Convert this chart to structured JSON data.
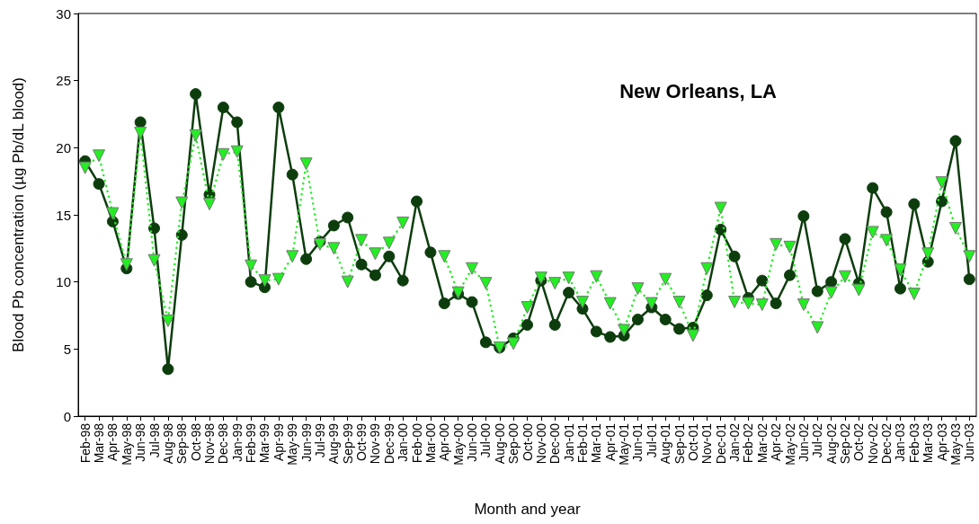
{
  "chart_data": {
    "type": "line",
    "title": "New Orleans, LA",
    "xlabel": "Month and year",
    "ylabel": "Blood Pb concentration (µg Pb/dL blood)",
    "categories": [
      "Feb-98",
      "Mar-98",
      "Apr-98",
      "May-98",
      "Jun-98",
      "Jul-98",
      "Aug-98",
      "Sep-98",
      "Oct-98",
      "Nov-98",
      "Dec-98",
      "Jan-99",
      "Feb-99",
      "Mar-99",
      "Apr-99",
      "May-99",
      "Jun-99",
      "Jul-99",
      "Aug-99",
      "Sep-99",
      "Oct-99",
      "Nov-99",
      "Dec-99",
      "Jan-00",
      "Feb-00",
      "Mar-00",
      "Apr-00",
      "May-00",
      "Jun-00",
      "Jul-00",
      "Aug-00",
      "Sep-00",
      "Oct-00",
      "Nov-00",
      "Dec-00",
      "Jan-01",
      "Feb-01",
      "Mar-01",
      "Apr-01",
      "May-01",
      "Jun-01",
      "Jul-01",
      "Aug-01",
      "Sep-01",
      "Oct-01",
      "Nov-01",
      "Dec-01",
      "Jan-02",
      "Feb-02",
      "Mar-02",
      "Apr-02",
      "May-02",
      "Jun-02",
      "Jul-02",
      "Aug-02",
      "Sep-02",
      "Oct-02",
      "Nov-02",
      "Dec-02",
      "Jan-03",
      "Feb-03",
      "Mar-03",
      "Apr-03",
      "May-03",
      "Jun-03"
    ],
    "series": [
      {
        "color": "#22ee22",
        "marker": "triangle",
        "line_style": "dotted",
        "values": [
          18.5,
          19.4,
          15.1,
          11.3,
          21.1,
          11.6,
          7.1,
          15.9,
          20.9,
          15.8,
          19.5,
          19.7,
          11.2,
          10.1,
          10.2,
          11.9,
          18.8,
          12.8,
          12.5,
          10.0,
          13.1,
          12.1,
          12.9,
          14.4,
          null,
          null,
          11.9,
          9.2,
          11.0,
          9.9,
          5.1,
          5.4,
          8.1,
          10.3,
          9.9,
          10.3,
          8.5,
          10.4,
          8.4,
          6.4,
          9.5,
          8.4,
          10.2,
          8.5,
          6.0,
          11.0,
          15.5,
          8.5,
          8.4,
          8.3,
          12.8,
          12.6,
          8.3,
          6.6,
          9.2,
          10.4,
          9.4,
          13.7,
          13.1,
          10.9,
          9.1,
          12.1,
          17.4,
          14.0,
          11.9
        ]
      },
      {
        "color": "#0d3d0d",
        "marker": "circle",
        "line_style": "solid",
        "values": [
          19,
          17.3,
          14.5,
          11,
          21.9,
          14,
          3.5,
          13.5,
          24,
          16.5,
          23,
          21.9,
          10,
          9.6,
          23,
          18,
          11.7,
          13,
          14.2,
          14.8,
          11.3,
          10.5,
          11.9,
          10.1,
          16,
          12.2,
          8.4,
          9.1,
          8.5,
          5.5,
          5.1,
          5.8,
          6.8,
          10.1,
          6.8,
          9.2,
          8.0,
          6.3,
          5.9,
          6.0,
          7.2,
          8.1,
          7.2,
          6.5,
          6.6,
          9.0,
          13.9,
          11.9,
          8.8,
          10.1,
          8.4,
          10.5,
          14.9,
          9.3,
          10.0,
          13.2,
          9.9,
          17.0,
          15.2,
          9.5,
          15.8,
          11.5,
          16.0,
          20.5,
          10.2
        ]
      }
    ],
    "ylim": [
      0,
      30
    ],
    "yticks": [
      0,
      5,
      10,
      15,
      20,
      25,
      30
    ],
    "grid": false
  }
}
